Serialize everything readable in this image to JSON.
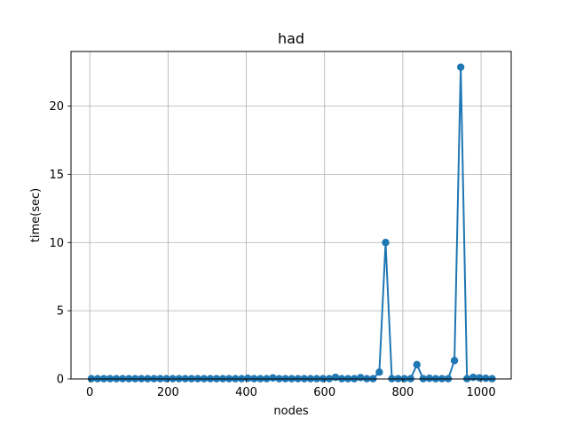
{
  "chart_data": {
    "type": "line",
    "title": "had",
    "xlabel": "nodes",
    "ylabel": "time(sec)",
    "xlim": [
      -48,
      1077
    ],
    "ylim": [
      0,
      24
    ],
    "xticks": [
      0,
      200,
      400,
      600,
      800,
      1000
    ],
    "yticks": [
      0,
      5,
      10,
      15,
      20
    ],
    "grid": true,
    "color": "#1f77b4",
    "series": [
      {
        "x": [
          4,
          20,
          36,
          52,
          68,
          84,
          100,
          116,
          132,
          148,
          164,
          180,
          196,
          212,
          228,
          244,
          260,
          276,
          292,
          308,
          324,
          340,
          356,
          372,
          388,
          404,
          420,
          436,
          452,
          468,
          484,
          500,
          516,
          532,
          548,
          564,
          580,
          596,
          612,
          628,
          644,
          660,
          676,
          692,
          708,
          724,
          740,
          756,
          772,
          788,
          804,
          820,
          836,
          852,
          868,
          884,
          900,
          916,
          932,
          948,
          964,
          980,
          996,
          1012,
          1028
        ],
        "y": [
          0.02,
          0.02,
          0.02,
          0.02,
          0.02,
          0.02,
          0.02,
          0.02,
          0.02,
          0.02,
          0.02,
          0.02,
          0.02,
          0.02,
          0.02,
          0.02,
          0.02,
          0.02,
          0.02,
          0.02,
          0.02,
          0.02,
          0.02,
          0.02,
          0.02,
          0.05,
          0.02,
          0.02,
          0.02,
          0.08,
          0.02,
          0.02,
          0.02,
          0.02,
          0.02,
          0.02,
          0.02,
          0.02,
          0.02,
          0.12,
          0.02,
          0.02,
          0.02,
          0.1,
          0.02,
          0.02,
          0.5,
          10.0,
          0.02,
          0.02,
          0.02,
          0.02,
          1.05,
          0.02,
          0.05,
          0.02,
          0.02,
          0.02,
          1.35,
          22.85,
          0.02,
          0.12,
          0.08,
          0.05,
          0.02
        ]
      }
    ]
  }
}
